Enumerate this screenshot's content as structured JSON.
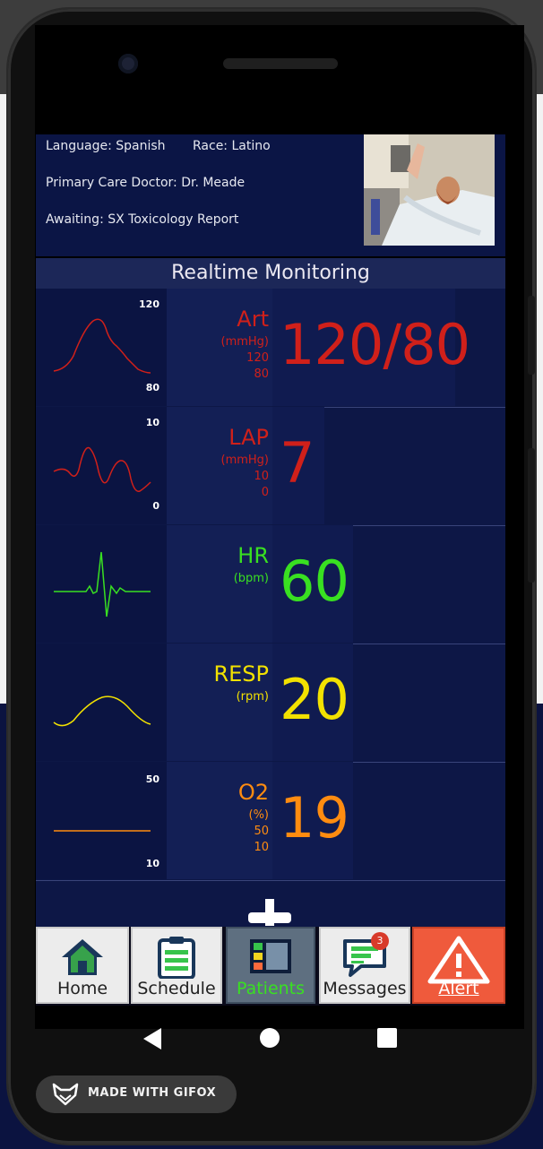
{
  "patient_info": {
    "language": "Language: Spanish",
    "race": "Race: Latino",
    "primary_care": "Primary Care Doctor: Dr. Meade",
    "awaiting": "Awaiting: SX Toxicology Report"
  },
  "monitoring": {
    "title": "Realtime Monitoring",
    "vitals": [
      {
        "label": "Art",
        "unit": "(mmHg)",
        "upper": "120",
        "lower": "80",
        "scale_high": "120",
        "scale_low": "80",
        "value": "120/80",
        "color": "#d0201a"
      },
      {
        "label": "LAP",
        "unit": "(mmHg)",
        "upper": "10",
        "lower": "0",
        "scale_high": "10",
        "scale_low": "0",
        "value": "7",
        "color": "#d0201a"
      },
      {
        "label": "HR",
        "unit": "(bpm)",
        "value": "60",
        "color": "#39e021"
      },
      {
        "label": "RESP",
        "unit": "(rpm)",
        "value": "20",
        "color": "#f2e100"
      },
      {
        "label": "O2",
        "unit": "(%)",
        "upper": "50",
        "lower": "10",
        "scale_high": "50",
        "scale_low": "10",
        "value": "19",
        "color": "#ff8c10"
      }
    ]
  },
  "nav": {
    "items": [
      {
        "label": "Home",
        "icon": "home-icon"
      },
      {
        "label": "Schedule",
        "icon": "clipboard-icon"
      },
      {
        "label": "Patients",
        "icon": "patients-panel-icon",
        "active": true
      },
      {
        "label": "Messages",
        "icon": "message-icon",
        "badge": "3"
      },
      {
        "label": "Alert",
        "icon": "warning-icon"
      }
    ]
  },
  "watermark": {
    "text": "MADE WITH GIFOX"
  }
}
